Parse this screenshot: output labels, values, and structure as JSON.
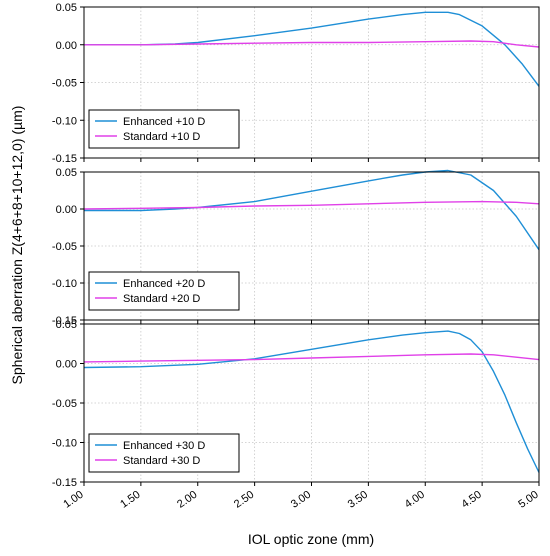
{
  "chart_data": {
    "type": "line",
    "ylabel": "Spherical aberration Z(4+6+8+10+12,0) (µm)",
    "xlabel": "IOL optic zone (mm)",
    "xlim": [
      1.0,
      5.0
    ],
    "x_ticks": [
      "1.00",
      "1.50",
      "2.00",
      "2.50",
      "3.00",
      "3.50",
      "4.00",
      "4.50",
      "5.00"
    ],
    "grid": true,
    "legend_position": "lower-left",
    "colors": {
      "enhanced": "#1f8fd6",
      "standard": "#e040e8",
      "grid": "#c8c8c8"
    },
    "panels": [
      {
        "ylim": [
          -0.15,
          0.05
        ],
        "y_ticks": [
          "0.05",
          "0.00",
          "-0.05",
          "-0.10",
          "-0.15"
        ],
        "series": [
          {
            "name": "Enhanced +10 D",
            "color_key": "enhanced",
            "x": [
              1.0,
              1.5,
              1.8,
              2.0,
              2.5,
              3.0,
              3.5,
              3.8,
              4.0,
              4.2,
              4.3,
              4.5,
              4.7,
              4.85,
              5.0
            ],
            "y": [
              0.0,
              0.0,
              0.001,
              0.003,
              0.012,
              0.022,
              0.034,
              0.04,
              0.043,
              0.043,
              0.04,
              0.025,
              0.0,
              -0.025,
              -0.055
            ]
          },
          {
            "name": "Standard +10 D",
            "color_key": "standard",
            "x": [
              1.0,
              1.5,
              2.0,
              2.5,
              3.0,
              3.5,
              4.0,
              4.4,
              4.6,
              4.8,
              5.0
            ],
            "y": [
              0.0,
              0.0,
              0.001,
              0.002,
              0.003,
              0.003,
              0.004,
              0.005,
              0.004,
              0.0,
              -0.003
            ]
          }
        ]
      },
      {
        "ylim": [
          -0.15,
          0.05
        ],
        "y_ticks": [
          "0.05",
          "0.00",
          "-0.05",
          "-0.10",
          "-0.15"
        ],
        "series": [
          {
            "name": "Enhanced +20 D",
            "color_key": "enhanced",
            "x": [
              1.0,
              1.5,
              1.8,
              2.0,
              2.5,
              3.0,
              3.5,
              3.8,
              4.0,
              4.2,
              4.4,
              4.6,
              4.8,
              5.0
            ],
            "y": [
              -0.002,
              -0.002,
              0.0,
              0.002,
              0.01,
              0.024,
              0.038,
              0.046,
              0.05,
              0.052,
              0.046,
              0.025,
              -0.01,
              -0.055
            ]
          },
          {
            "name": "Standard +20 D",
            "color_key": "standard",
            "x": [
              1.0,
              1.5,
              2.0,
              2.5,
              3.0,
              3.5,
              4.0,
              4.5,
              4.8,
              5.0
            ],
            "y": [
              0.0,
              0.001,
              0.002,
              0.004,
              0.005,
              0.007,
              0.009,
              0.01,
              0.009,
              0.007
            ]
          }
        ]
      },
      {
        "ylim": [
          -0.15,
          0.05
        ],
        "y_ticks": [
          "0.05",
          "0.00",
          "-0.05",
          "-0.10",
          "-0.15"
        ],
        "series": [
          {
            "name": "Enhanced +30 D",
            "color_key": "enhanced",
            "x": [
              1.0,
              1.5,
              2.0,
              2.5,
              3.0,
              3.5,
              3.8,
              4.0,
              4.2,
              4.3,
              4.4,
              4.5,
              4.6,
              4.7,
              4.8,
              4.9,
              5.0
            ],
            "y": [
              -0.005,
              -0.004,
              -0.001,
              0.006,
              0.018,
              0.03,
              0.036,
              0.039,
              0.041,
              0.038,
              0.03,
              0.015,
              -0.01,
              -0.04,
              -0.075,
              -0.108,
              -0.138
            ]
          },
          {
            "name": "Standard +30 D",
            "color_key": "standard",
            "x": [
              1.0,
              1.5,
              2.0,
              2.5,
              3.0,
              3.5,
              4.0,
              4.4,
              4.6,
              4.8,
              5.0
            ],
            "y": [
              0.002,
              0.003,
              0.004,
              0.005,
              0.007,
              0.009,
              0.011,
              0.012,
              0.011,
              0.008,
              0.005
            ]
          }
        ]
      }
    ]
  }
}
